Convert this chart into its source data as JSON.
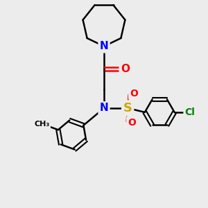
{
  "bg_color": "#ececec",
  "atom_colors": {
    "C": "#000000",
    "N": "#0000ff",
    "O": "#ff0000",
    "S": "#ccaa00",
    "Cl": "#008000"
  },
  "bond_color": "#000000",
  "bond_width": 1.8,
  "font_size_atom": 11,
  "fig_width": 3.0,
  "fig_height": 3.0,
  "dpi": 100
}
